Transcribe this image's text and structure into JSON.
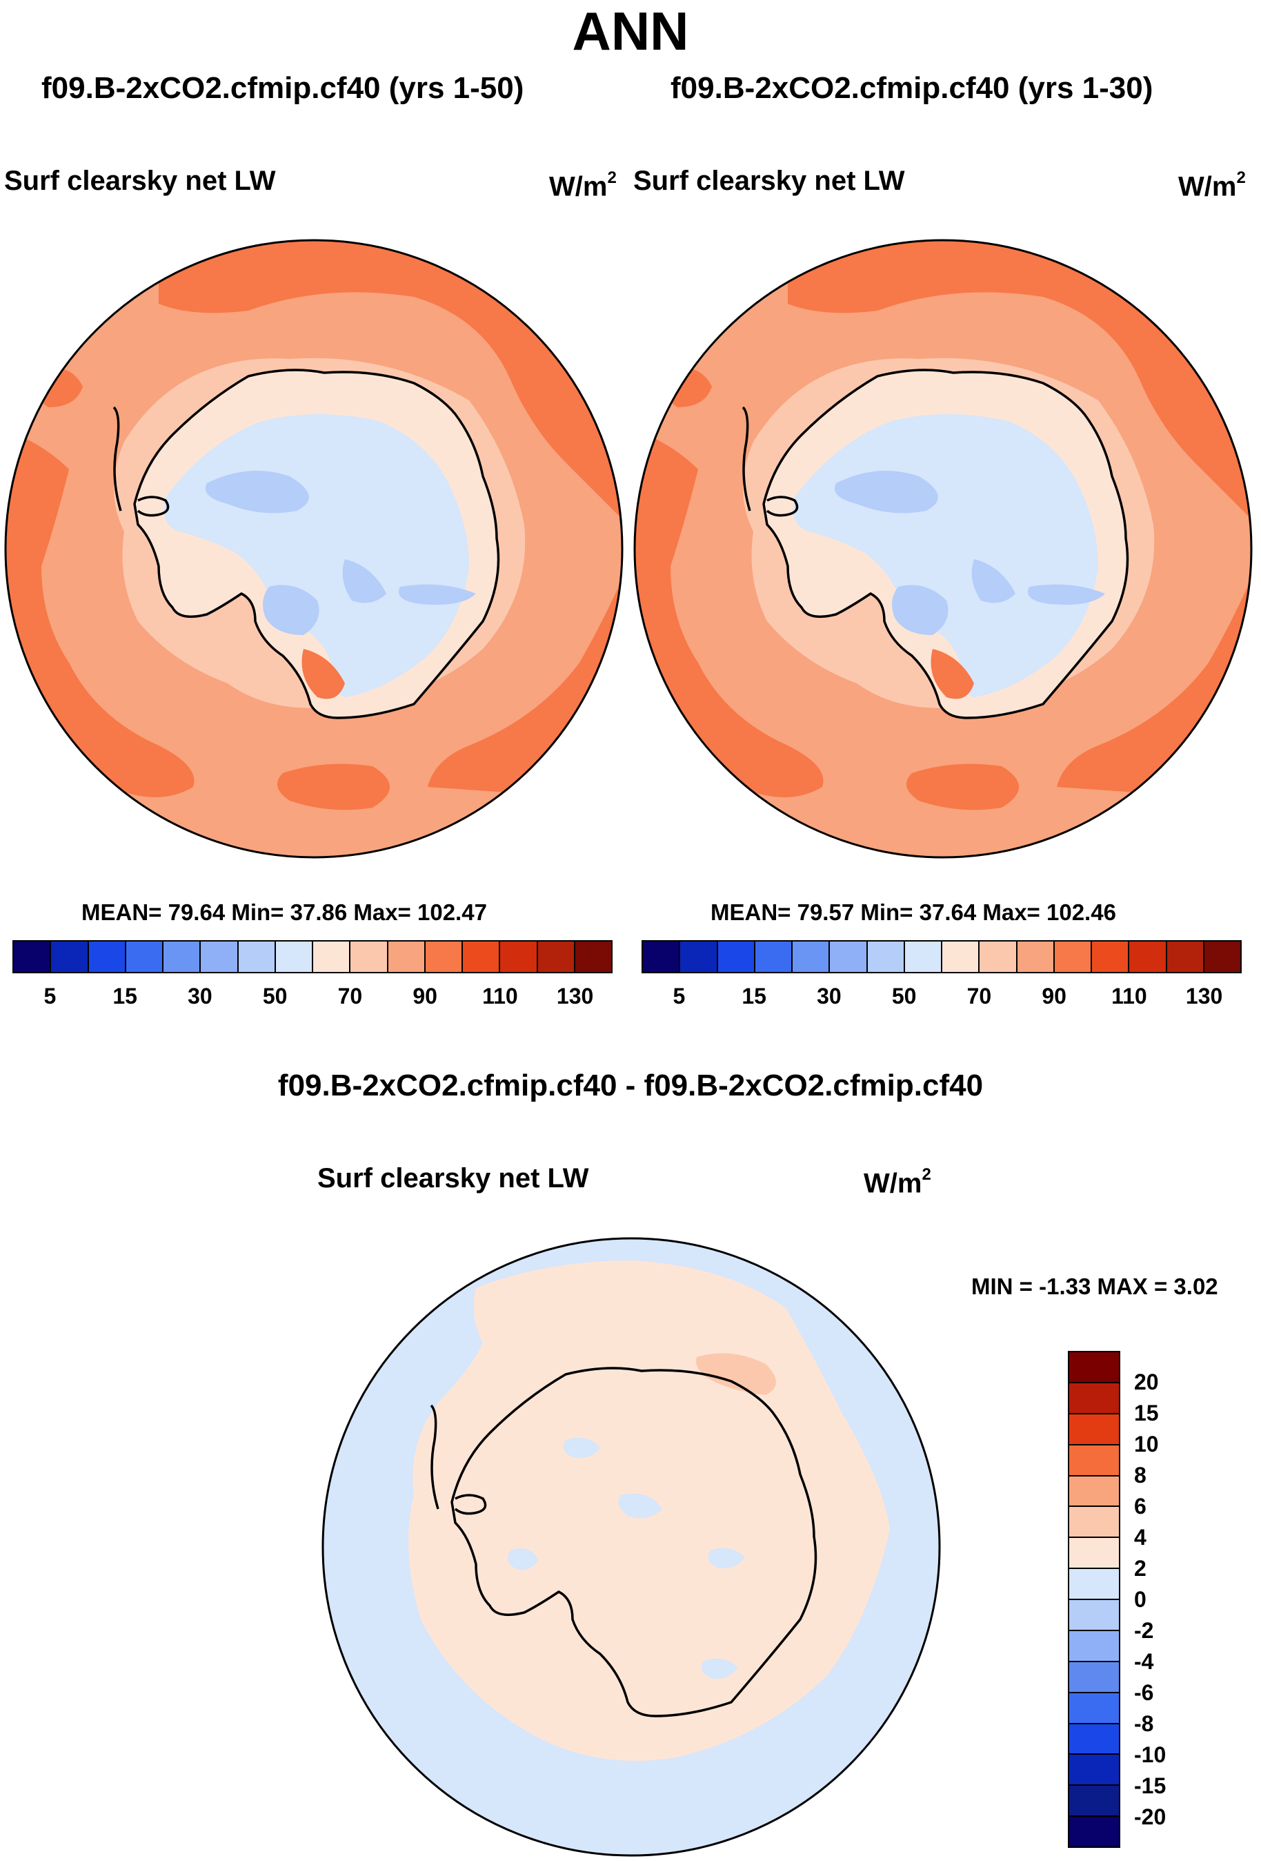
{
  "title": "ANN",
  "panels": [
    {
      "case_title": "f09.B-2xCO2.cfmip.cf40 (yrs 1-50)",
      "variable": "Surf clearsky net LW",
      "units_base": "W/m",
      "units_exp": "2",
      "stats": "MEAN=  79.64  Min=  37.86  Max= 102.47",
      "colorbar_ticks": [
        "5",
        "15",
        "30",
        "50",
        "70",
        "90",
        "110",
        "130"
      ]
    },
    {
      "case_title": "f09.B-2xCO2.cfmip.cf40 (yrs 1-30)",
      "variable": "Surf clearsky net LW",
      "units_base": "W/m",
      "units_exp": "2",
      "stats": "MEAN=  79.57  Min=  37.64  Max= 102.46",
      "colorbar_ticks": [
        "5",
        "15",
        "30",
        "50",
        "70",
        "90",
        "110",
        "130"
      ]
    }
  ],
  "diff": {
    "case_title": "f09.B-2xCO2.cfmip.cf40 - f09.B-2xCO2.cfmip.cf40",
    "variable": "Surf clearsky net LW",
    "units_base": "W/m",
    "units_exp": "2",
    "stats": "MIN =  -1.33 MAX =    3.02",
    "colorbar_ticks": [
      "20",
      "15",
      "10",
      "8",
      "6",
      "4",
      "2",
      "0",
      "-2",
      "-4",
      "-6",
      "-8",
      "-10",
      "-15",
      "-20"
    ]
  },
  "colors": {
    "field_scale": [
      "#08006b",
      "#0a26b8",
      "#1a48e8",
      "#3a6cf2",
      "#6a95f5",
      "#8fb0f7",
      "#b4cdf9",
      "#d6e6fb",
      "#fde5d6",
      "#fbc8ae",
      "#f8a47e",
      "#f77848",
      "#ec4b1e",
      "#d22d0c",
      "#b2220a",
      "#7a0a04"
    ],
    "diff_scale": [
      "#7a0000",
      "#b81d0a",
      "#e33b12",
      "#f56d3a",
      "#f8a57d",
      "#fbc8ae",
      "#fde5d6",
      "#d6e6fb",
      "#b4cdf9",
      "#8fb0f7",
      "#5f89ef",
      "#3a6cf2",
      "#1a48e8",
      "#0a26b8",
      "#0a1b8a",
      "#08006b"
    ],
    "ocean_high": "#f77848",
    "ocean_mid": "#f8a47e",
    "coast_ring": "#fbc8ae",
    "land_pale": "#fde5d6",
    "plateau": "#d6e6fb",
    "plateau_low": "#b4cdf9",
    "diff_ocean": "#d6e6fb",
    "diff_pos": "#fde5d6",
    "diff_pos2": "#fbc8ae"
  }
}
